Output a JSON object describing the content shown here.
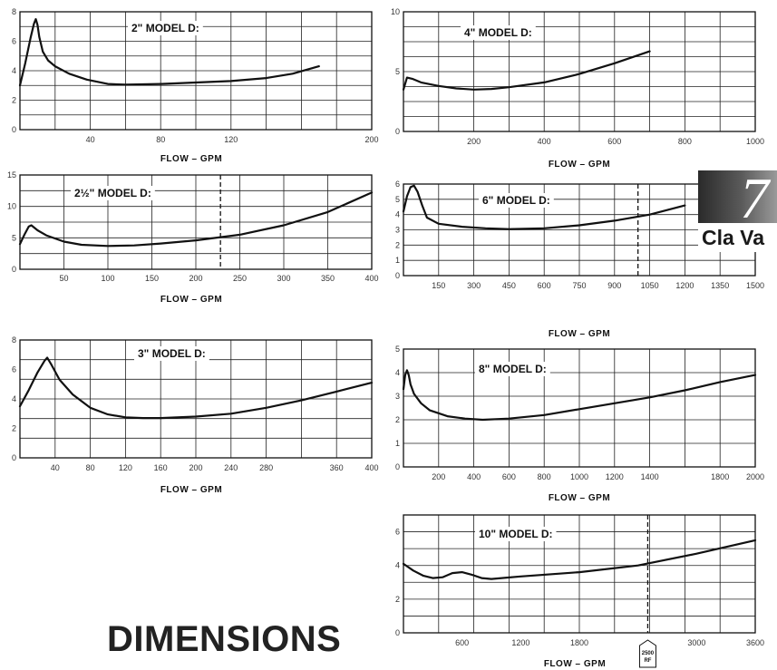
{
  "page": {
    "tab_number": "7",
    "tab_brand": "Cla Va",
    "footer_heading": "DIMENSIONS"
  },
  "chart_data": [
    {
      "type": "line",
      "title": "2\" MODEL D:",
      "xlabel": "FLOW – GPM",
      "ylabel": "",
      "xlim": [
        0,
        200
      ],
      "ylim": [
        0,
        8
      ],
      "x_ticks": [
        40,
        80,
        120,
        200
      ],
      "x_tick_labels": [
        "40",
        "80",
        "120",
        "200"
      ],
      "y_ticks": [
        0,
        2,
        4,
        6,
        8
      ],
      "grid": true,
      "series": [
        {
          "x": [
            0,
            3,
            6,
            8,
            9,
            10,
            11,
            13,
            16,
            20,
            28,
            38,
            50,
            60,
            80,
            100,
            120,
            140,
            155,
            170
          ],
          "y": [
            3,
            4.5,
            6.2,
            7.2,
            7.5,
            7.1,
            6.3,
            5.3,
            4.7,
            4.3,
            3.8,
            3.4,
            3.1,
            3.05,
            3.1,
            3.2,
            3.3,
            3.5,
            3.8,
            4.3
          ]
        }
      ]
    },
    {
      "type": "line",
      "title": "4\" MODEL D:",
      "xlabel": "FLOW – GPM",
      "ylabel": "",
      "xlim": [
        0,
        1000
      ],
      "ylim": [
        0,
        10
      ],
      "x_ticks": [
        200,
        400,
        600,
        800,
        1000
      ],
      "x_tick_labels": [
        "200",
        "400",
        "600",
        "800",
        "1000"
      ],
      "y_ticks": [
        0,
        5,
        10
      ],
      "grid": true,
      "series": [
        {
          "x": [
            0,
            10,
            25,
            50,
            100,
            150,
            200,
            250,
            300,
            400,
            500,
            600,
            700
          ],
          "y": [
            3.5,
            4.5,
            4.4,
            4.1,
            3.8,
            3.6,
            3.5,
            3.55,
            3.7,
            4.1,
            4.8,
            5.7,
            6.7
          ]
        }
      ]
    },
    {
      "type": "line",
      "title": "2½\" MODEL D:",
      "xlabel": "FLOW – GPM",
      "ylabel": "",
      "xlim": [
        0,
        400
      ],
      "ylim": [
        0,
        15
      ],
      "x_ticks": [
        50,
        100,
        150,
        200,
        250,
        300,
        350,
        400
      ],
      "x_tick_labels": [
        "50",
        "100",
        "150",
        "200",
        "250",
        "300",
        "350",
        "400"
      ],
      "y_ticks": [
        0,
        5,
        10,
        15
      ],
      "grid": true,
      "series": [
        {
          "x": [
            0,
            5,
            10,
            13,
            20,
            30,
            50,
            70,
            100,
            130,
            160,
            200,
            250,
            300,
            350,
            400
          ],
          "y": [
            4,
            5.5,
            6.8,
            7,
            6.2,
            5.4,
            4.4,
            3.9,
            3.7,
            3.8,
            4.1,
            4.6,
            5.5,
            7,
            9.1,
            12.2
          ]
        }
      ],
      "reference_line_x": 228
    },
    {
      "type": "line",
      "title": "6\" MODEL D:",
      "xlabel": "FLOW – GPM",
      "ylabel": "",
      "xlim": [
        0,
        1500
      ],
      "ylim": [
        0,
        6
      ],
      "x_ticks": [
        150,
        300,
        450,
        600,
        750,
        900,
        1050,
        1200,
        1350,
        1500
      ],
      "x_tick_labels": [
        "150",
        "300",
        "450",
        "600",
        "750",
        "900",
        "1050",
        "1200",
        "1350",
        "1500"
      ],
      "y_ticks": [
        0,
        1,
        2,
        3,
        4,
        5,
        6
      ],
      "grid": true,
      "series": [
        {
          "x": [
            0,
            15,
            30,
            45,
            60,
            80,
            100,
            150,
            250,
            350,
            450,
            600,
            750,
            900,
            1050,
            1200
          ],
          "y": [
            4.2,
            5.2,
            5.8,
            5.9,
            5.5,
            4.6,
            3.8,
            3.4,
            3.2,
            3.1,
            3.05,
            3.1,
            3.3,
            3.6,
            4.0,
            4.6
          ]
        }
      ],
      "reference_line_x": 1000
    },
    {
      "type": "line",
      "title": "3\" MODEL D:",
      "xlabel": "FLOW – GPM",
      "ylabel": "",
      "xlim": [
        0,
        400
      ],
      "ylim": [
        0,
        8
      ],
      "x_ticks": [
        40,
        80,
        120,
        160,
        200,
        240,
        280,
        360,
        400
      ],
      "x_tick_labels": [
        "40",
        "80",
        "120",
        "160",
        "200",
        "240",
        "280",
        "360",
        "400"
      ],
      "y_ticks": [
        0,
        2,
        4,
        6,
        8
      ],
      "grid": true,
      "series": [
        {
          "x": [
            0,
            10,
            20,
            28,
            31,
            36,
            45,
            60,
            80,
            100,
            120,
            140,
            160,
            200,
            240,
            280,
            320,
            360,
            400
          ],
          "y": [
            3.5,
            4.6,
            5.8,
            6.6,
            6.8,
            6.3,
            5.3,
            4.3,
            3.4,
            2.95,
            2.75,
            2.7,
            2.7,
            2.8,
            3.0,
            3.4,
            3.9,
            4.5,
            5.1
          ]
        }
      ]
    },
    {
      "type": "line",
      "title": "8\" MODEL D:",
      "xlabel": "FLOW – GPM",
      "ylabel": "",
      "xlim": [
        0,
        2000
      ],
      "ylim": [
        0,
        5
      ],
      "x_ticks": [
        200,
        400,
        600,
        800,
        1000,
        1200,
        1400,
        1800,
        2000
      ],
      "x_tick_labels": [
        "200",
        "400",
        "600",
        "800",
        "1000",
        "1200",
        "1400",
        "1800",
        "2000"
      ],
      "y_ticks": [
        0,
        1,
        2,
        3,
        4,
        5
      ],
      "grid": true,
      "series": [
        {
          "x": [
            0,
            10,
            20,
            30,
            40,
            60,
            100,
            150,
            250,
            350,
            450,
            600,
            800,
            1000,
            1200,
            1400,
            1600,
            1800,
            2000
          ],
          "y": [
            3.3,
            3.9,
            4.1,
            3.9,
            3.5,
            3.1,
            2.7,
            2.4,
            2.15,
            2.05,
            2.0,
            2.05,
            2.2,
            2.45,
            2.7,
            2.95,
            3.25,
            3.6,
            3.9
          ]
        }
      ]
    },
    {
      "type": "line",
      "title": "10\" MODEL D:",
      "xlabel": "FLOW – GPM",
      "ylabel": "",
      "xlim": [
        0,
        3600
      ],
      "ylim": [
        0,
        7
      ],
      "x_ticks": [
        600,
        1200,
        1800,
        3000,
        3600
      ],
      "x_tick_labels": [
        "600",
        "1200",
        "1800",
        "3000",
        "3600"
      ],
      "y_ticks": [
        0,
        2,
        4,
        6
      ],
      "grid": true,
      "series": [
        {
          "x": [
            0,
            100,
            200,
            300,
            400,
            500,
            600,
            700,
            800,
            900,
            1200,
            1800,
            2400,
            3000,
            3600
          ],
          "y": [
            4.1,
            3.7,
            3.4,
            3.25,
            3.3,
            3.55,
            3.6,
            3.45,
            3.25,
            3.2,
            3.35,
            3.6,
            4.0,
            4.7,
            5.5
          ]
        }
      ],
      "reference_line_x": 2500,
      "reference_label": [
        "2500",
        "RF"
      ]
    }
  ]
}
